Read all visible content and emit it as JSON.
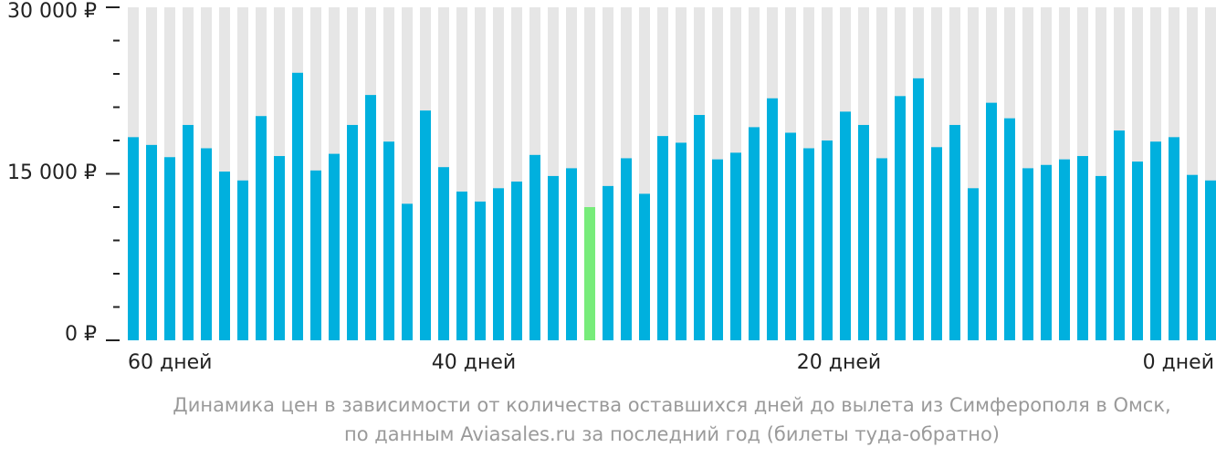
{
  "chart_data": {
    "type": "bar",
    "y_ticks": [
      "0 ₽",
      "15 000 ₽",
      "30 000 ₽"
    ],
    "y_tick_values": [
      0,
      15000,
      30000
    ],
    "ylim": [
      0,
      30000
    ],
    "x_tick_labels": [
      "60 дней",
      "40 дней",
      "20 дней",
      "0 дней"
    ],
    "values": [
      18300,
      17600,
      16500,
      19400,
      17300,
      15200,
      14400,
      20200,
      16600,
      24100,
      15300,
      16800,
      19400,
      22100,
      17900,
      12300,
      20700,
      15600,
      13400,
      12500,
      13700,
      14300,
      16700,
      14800,
      15500,
      12000,
      13900,
      16400,
      13200,
      18400,
      17800,
      20300,
      16300,
      16900,
      19200,
      21800,
      18700,
      17300,
      18000,
      20600,
      19400,
      16400,
      22000,
      23600,
      17400,
      19400,
      13700,
      21400,
      20000,
      15500,
      15800,
      16300,
      16600,
      14800,
      18900,
      16100,
      17900,
      18300,
      14900,
      14400
    ],
    "highlight_index": 25,
    "colors": {
      "bar": "#00b0de",
      "highlight": "#77ec7a",
      "background_bar": "#e6e6e6",
      "axis": "#222222"
    }
  },
  "caption": {
    "line1": "Динамика цен в зависимости от количества оставшихся дней до вылета из Симферополя в Омск,",
    "line2": "по данным Aviasales.ru за последний год (билеты туда-обратно)"
  }
}
